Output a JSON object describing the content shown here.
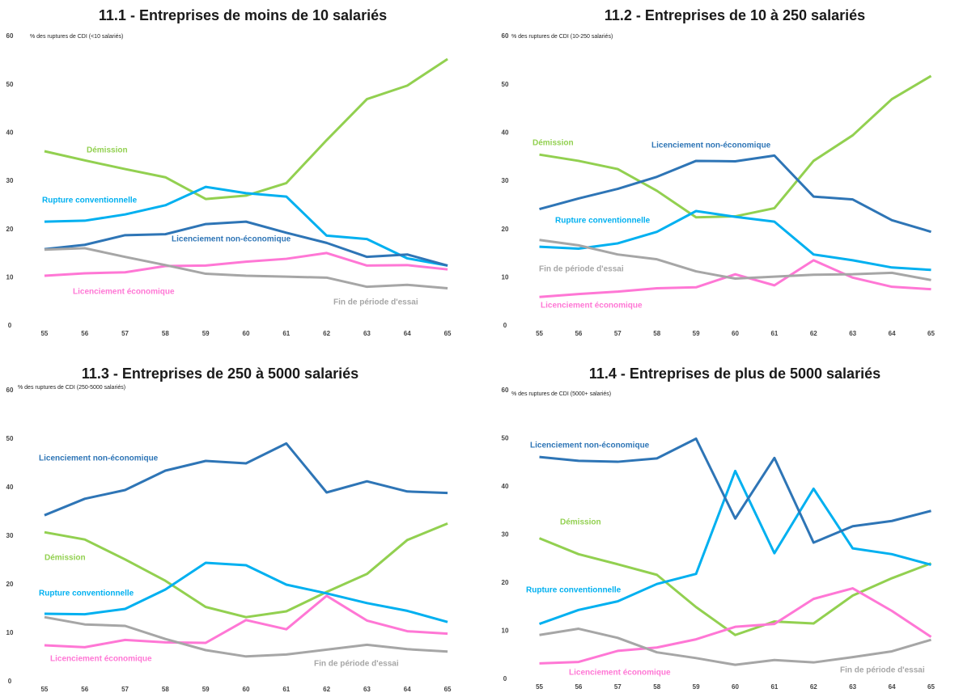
{
  "chart_data": [
    {
      "type": "line",
      "title": "11.1 - Entreprises de moins de 10 salariés",
      "y_label": "% des ruptures de CDI (<10 salariés)",
      "x": [
        55,
        56,
        57,
        58,
        59,
        60,
        61,
        62,
        63,
        64,
        65
      ],
      "xlim": [
        54.7,
        65.3
      ],
      "xticks": [
        55,
        56,
        57,
        58,
        59,
        60,
        61,
        62,
        63,
        64,
        65
      ],
      "ylim": [
        0,
        60
      ],
      "yticks": [
        0,
        10,
        20,
        30,
        40,
        50,
        60
      ],
      "series": [
        {
          "name": "Démission",
          "color": "#92d050",
          "values": [
            36.2,
            34.3,
            32.5,
            30.8,
            26.3,
            27,
            29.6,
            38.5,
            47,
            49.8,
            55.3
          ]
        },
        {
          "name": "Rupture conventionnelle",
          "color": "#00b0f0",
          "values": [
            21.6,
            21.8,
            23.1,
            25,
            28.8,
            27.5,
            26.8,
            18.7,
            18,
            14,
            12.5
          ]
        },
        {
          "name": "Licenciement non-économique",
          "color": "#2e75b6",
          "values": [
            15.9,
            16.8,
            18.8,
            19,
            21.1,
            21.6,
            19.3,
            17.2,
            14.3,
            14.8,
            12.5
          ]
        },
        {
          "name": "Licenciement économique",
          "color": "#ff77d5",
          "values": [
            10.4,
            10.9,
            11.1,
            12.4,
            12.5,
            13.3,
            13.9,
            15.1,
            12.5,
            12.6,
            11.7
          ]
        },
        {
          "name": "Fin de période d'essai",
          "color": "#a6a6a6",
          "values": [
            15.8,
            16.1,
            14.3,
            12.6,
            10.8,
            10.4,
            10.2,
            10,
            8.1,
            8.5,
            7.8
          ]
        }
      ]
    },
    {
      "type": "line",
      "title": "11.2 - Entreprises de 10 à 250 salariés",
      "y_label": "% des ruptures de CDI (10-250 salariés)",
      "x": [
        55,
        56,
        57,
        58,
        59,
        60,
        61,
        62,
        63,
        64,
        65
      ],
      "xlim": [
        54.7,
        65.3
      ],
      "xticks": [
        55,
        56,
        57,
        58,
        59,
        60,
        61,
        62,
        63,
        64,
        65
      ],
      "ylim": [
        0,
        60
      ],
      "yticks": [
        0,
        10,
        20,
        30,
        40,
        50,
        60
      ],
      "series": [
        {
          "name": "Démission",
          "color": "#92d050",
          "values": [
            35.5,
            34.2,
            32.5,
            28,
            22.5,
            22.7,
            24.4,
            34.2,
            39.5,
            47,
            51.8
          ]
        },
        {
          "name": "Rupture conventionnelle",
          "color": "#00b0f0",
          "values": [
            16.4,
            16,
            17.1,
            19.5,
            23.8,
            22.6,
            21.6,
            14.8,
            13.6,
            12.1,
            11.6
          ]
        },
        {
          "name": "Licenciement non-économique",
          "color": "#2e75b6",
          "values": [
            24.2,
            26.4,
            28.4,
            30.9,
            34.2,
            34.1,
            35.3,
            26.8,
            26.2,
            21.9,
            19.5
          ]
        },
        {
          "name": "Licenciement économique",
          "color": "#ff77d5",
          "values": [
            6,
            6.6,
            7.1,
            7.8,
            8,
            10.7,
            8.4,
            13.6,
            10,
            8.1,
            7.6
          ]
        },
        {
          "name": "Fin de période d'essai",
          "color": "#a6a6a6",
          "values": [
            17.8,
            16.7,
            14.8,
            13.8,
            11.3,
            9.8,
            10.2,
            10.6,
            10.7,
            11,
            9.5
          ]
        }
      ]
    },
    {
      "type": "line",
      "title": "11.3 - Entreprises de 250 à 5000 salariés",
      "y_label": "% des ruptures de CDI (250-5000 salariés)",
      "x": [
        55,
        56,
        57,
        58,
        59,
        60,
        61,
        62,
        63,
        64,
        65
      ],
      "xlim": [
        54.7,
        65.3
      ],
      "xticks": [
        55,
        56,
        57,
        58,
        59,
        60,
        61,
        62,
        63,
        64,
        65
      ],
      "ylim": [
        0,
        60
      ],
      "yticks": [
        0,
        10,
        20,
        30,
        40,
        50,
        60
      ],
      "series": [
        {
          "name": "Démission",
          "color": "#92d050",
          "values": [
            30.8,
            29.3,
            25.2,
            20.8,
            15.4,
            13.3,
            14.5,
            18.5,
            22.2,
            29.2,
            32.6
          ]
        },
        {
          "name": "Rupture conventionnelle",
          "color": "#00b0f0",
          "values": [
            14,
            13.9,
            15,
            19,
            24.5,
            24,
            20,
            18.2,
            16.2,
            14.6,
            12.3
          ]
        },
        {
          "name": "Licenciement non-économique",
          "color": "#2e75b6",
          "values": [
            34.3,
            37.7,
            39.5,
            43.5,
            45.5,
            45,
            49.1,
            39,
            41.3,
            39.2,
            38.9
          ]
        },
        {
          "name": "Licenciement économique",
          "color": "#ff77d5",
          "values": [
            7.5,
            7.1,
            8.6,
            8.1,
            8,
            12.7,
            10.8,
            17.7,
            12.6,
            10.4,
            9.9
          ]
        },
        {
          "name": "Fin de période d'essai",
          "color": "#a6a6a6",
          "values": [
            13.3,
            11.8,
            11.5,
            8.8,
            6.5,
            5.2,
            5.6,
            6.6,
            7.6,
            6.7,
            6.2
          ]
        }
      ]
    },
    {
      "type": "line",
      "title": "11.4 - Entreprises de plus de 5000 salariés",
      "y_label": "% des ruptures de CDI (5000+ salariés)",
      "x": [
        55,
        56,
        57,
        58,
        59,
        60,
        61,
        62,
        63,
        64,
        65
      ],
      "xlim": [
        54.7,
        65.3
      ],
      "xticks": [
        55,
        56,
        57,
        58,
        59,
        60,
        61,
        62,
        63,
        64,
        65
      ],
      "ylim": [
        0,
        60
      ],
      "yticks": [
        0,
        10,
        20,
        30,
        40,
        50,
        60
      ],
      "series": [
        {
          "name": "Démission",
          "color": "#92d050",
          "values": [
            29.3,
            26,
            23.9,
            21.7,
            15,
            9.2,
            12,
            11.6,
            17.4,
            21,
            24.1
          ]
        },
        {
          "name": "Rupture conventionnelle",
          "color": "#00b0f0",
          "values": [
            11.5,
            14.4,
            16.2,
            19.8,
            21.9,
            43.3,
            26.2,
            39.6,
            27.2,
            26,
            23.8
          ]
        },
        {
          "name": "Licenciement non-économique",
          "color": "#2e75b6",
          "values": [
            46.2,
            45.4,
            45.2,
            45.9,
            50,
            33.4,
            46,
            28.4,
            31.8,
            32.9,
            35
          ]
        },
        {
          "name": "Licenciement économique",
          "color": "#ff77d5",
          "values": [
            3.3,
            3.6,
            5.9,
            6.6,
            8.3,
            10.9,
            11.5,
            16.7,
            18.9,
            14.2,
            8.8
          ]
        },
        {
          "name": "Fin de période d'essai",
          "color": "#a6a6a6",
          "values": [
            9.2,
            10.5,
            8.6,
            5.6,
            4.4,
            3,
            4,
            3.5,
            4.6,
            5.8,
            8.2
          ]
        }
      ]
    }
  ]
}
